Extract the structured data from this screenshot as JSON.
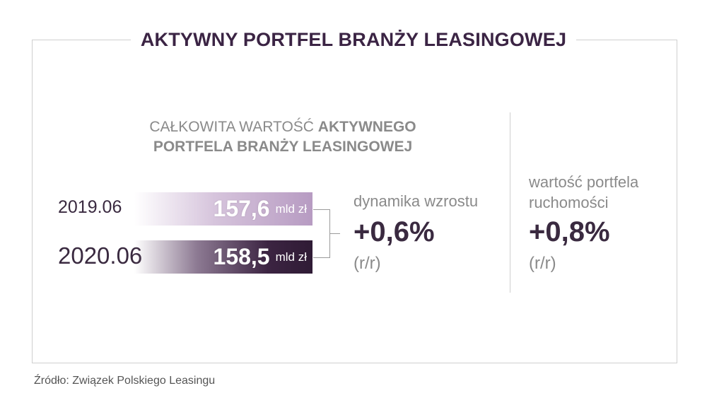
{
  "title": "AKTYWNY PORTFEL BRANŻY LEASINGOWEJ",
  "subtitle": {
    "line1_regular": "CAŁKOWITA WARTOŚĆ ",
    "line1_bold": "AKTYWNEGO",
    "line2_bold": "PORTFELA BRANŻY LEASINGOWEJ"
  },
  "rows": [
    {
      "period": "2019.06",
      "value": "157,6",
      "unit": "mld zł"
    },
    {
      "period": "2020.06",
      "value": "158,5",
      "unit": "mld zł"
    }
  ],
  "growth": {
    "label": "dynamika wzrostu",
    "value": "+0,6%",
    "yoy": "(r/r)"
  },
  "movables": {
    "label_line1": "wartość portfela",
    "label_line2": "ruchomości",
    "value": "+0,8%",
    "yoy": "(r/r)"
  },
  "source": "Źródło: Związek Polskiego Leasingu",
  "colors": {
    "title": "#3b2444",
    "bar_2019_end": "#b79bc2",
    "bar_2020_end": "#2f1b35",
    "muted_text": "#8a8a8a",
    "frame": "#cfcfcf"
  }
}
